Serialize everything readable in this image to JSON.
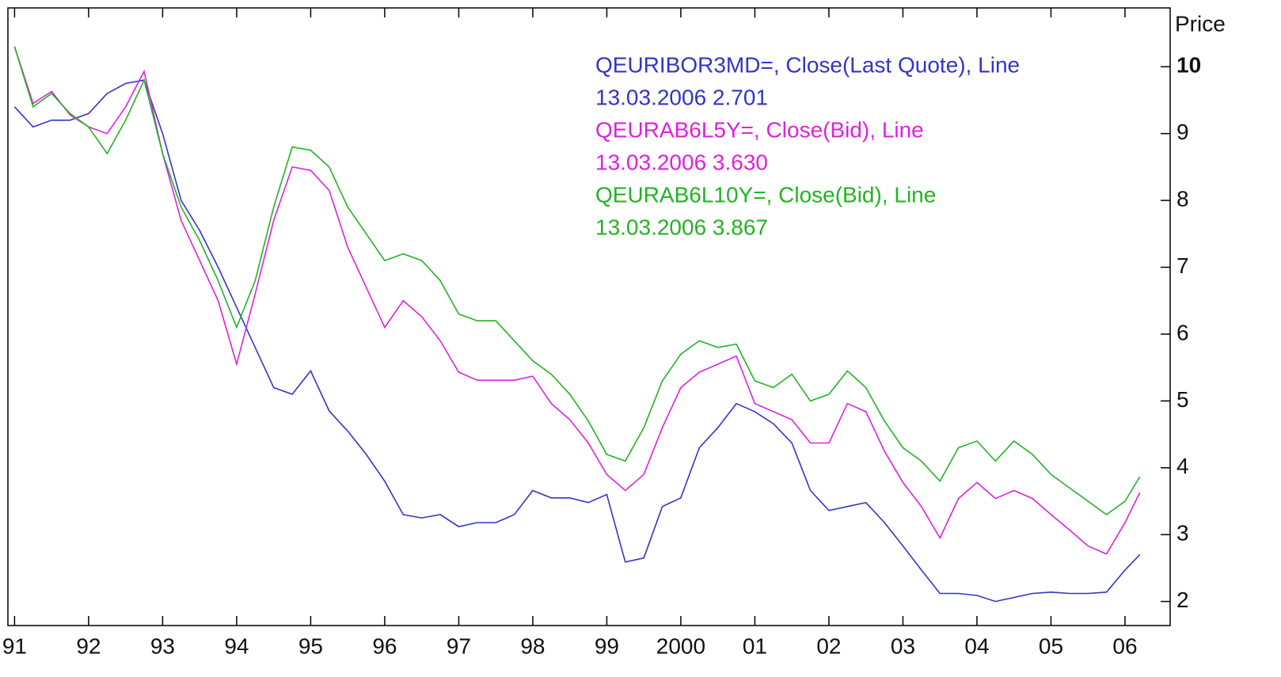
{
  "chart_data": {
    "type": "line",
    "y_label": "Price",
    "x": [
      1991,
      1991.25,
      1991.5,
      1991.75,
      1992,
      1992.25,
      1992.5,
      1992.75,
      1993,
      1993.25,
      1993.5,
      1993.75,
      1994,
      1994.25,
      1994.5,
      1994.75,
      1995,
      1995.25,
      1995.5,
      1995.75,
      1996,
      1996.25,
      1996.5,
      1996.75,
      1997,
      1997.25,
      1997.5,
      1997.75,
      1998,
      1998.25,
      1998.5,
      1998.75,
      1999,
      1999.25,
      1999.5,
      1999.75,
      2000,
      2000.25,
      2000.5,
      2000.75,
      2001,
      2001.25,
      2001.5,
      2001.75,
      2002,
      2002.25,
      2002.5,
      2002.75,
      2003,
      2003.25,
      2003.5,
      2003.75,
      2004,
      2004.25,
      2004.5,
      2004.75,
      2005,
      2005.25,
      2005.5,
      2005.75,
      2006,
      2006.2
    ],
    "series": [
      {
        "name": "QEURIBOR3MD=, Close(Last Quote), Line",
        "last_value_label": "13.03.2006 2.701",
        "color": "#3434c8",
        "values": [
          9.4,
          9.1,
          9.2,
          9.2,
          9.3,
          9.6,
          9.75,
          9.8,
          9.0,
          8.0,
          7.55,
          7.0,
          6.4,
          5.8,
          5.2,
          5.1,
          5.45,
          4.85,
          4.55,
          4.2,
          3.8,
          3.3,
          3.25,
          3.3,
          3.12,
          3.18,
          3.18,
          3.3,
          3.66,
          3.55,
          3.55,
          3.48,
          3.6,
          2.59,
          2.65,
          3.42,
          3.55,
          4.3,
          4.6,
          4.96,
          4.84,
          4.66,
          4.37,
          3.66,
          3.36,
          3.42,
          3.48,
          3.18,
          2.83,
          2.47,
          2.12,
          2.12,
          2.09,
          2.0,
          2.06,
          2.12,
          2.14,
          2.12,
          2.12,
          2.14,
          2.47,
          2.701
        ]
      },
      {
        "name": "QEURAB6L5Y=, Close(Bid), Line",
        "last_value_label": "13.03.2006 3.630",
        "color": "#e020e0",
        "values": [
          10.3,
          9.45,
          9.63,
          9.28,
          9.1,
          9.0,
          9.4,
          9.93,
          8.7,
          7.7,
          7.1,
          6.5,
          5.55,
          6.6,
          7.7,
          8.5,
          8.45,
          8.15,
          7.3,
          6.7,
          6.1,
          6.5,
          6.26,
          5.9,
          5.43,
          5.31,
          5.31,
          5.31,
          5.37,
          4.96,
          4.72,
          4.37,
          3.9,
          3.66,
          3.9,
          4.6,
          5.2,
          5.43,
          5.55,
          5.67,
          4.96,
          4.84,
          4.72,
          4.37,
          4.37,
          4.96,
          4.84,
          4.25,
          3.78,
          3.42,
          2.95,
          3.54,
          3.78,
          3.54,
          3.66,
          3.54,
          3.3,
          3.07,
          2.83,
          2.71,
          3.18,
          3.63
        ]
      },
      {
        "name": "QEURAB6L10Y=, Close(Bid), Line",
        "last_value_label": "13.03.2006 3.867",
        "color": "#22b422",
        "values": [
          10.3,
          9.4,
          9.6,
          9.3,
          9.1,
          8.7,
          9.2,
          9.8,
          8.7,
          7.9,
          7.4,
          6.8,
          6.1,
          6.8,
          7.9,
          8.8,
          8.75,
          8.5,
          7.9,
          7.5,
          7.1,
          7.2,
          7.1,
          6.8,
          6.3,
          6.2,
          6.2,
          5.9,
          5.6,
          5.4,
          5.1,
          4.7,
          4.2,
          4.1,
          4.6,
          5.3,
          5.7,
          5.9,
          5.8,
          5.85,
          5.3,
          5.2,
          5.4,
          5.0,
          5.1,
          5.45,
          5.2,
          4.7,
          4.3,
          4.1,
          3.8,
          4.3,
          4.4,
          4.1,
          4.4,
          4.2,
          3.9,
          3.7,
          3.5,
          3.3,
          3.5,
          3.867
        ]
      }
    ],
    "xlim": [
      1990.91,
      2006.61
    ],
    "ylim": [
      1.64,
      10.88
    ],
    "xticks": [
      {
        "value": 1991,
        "label": "91"
      },
      {
        "value": 1992,
        "label": "92"
      },
      {
        "value": 1993,
        "label": "93"
      },
      {
        "value": 1994,
        "label": "94"
      },
      {
        "value": 1995,
        "label": "95"
      },
      {
        "value": 1996,
        "label": "96"
      },
      {
        "value": 1997,
        "label": "97"
      },
      {
        "value": 1998,
        "label": "98"
      },
      {
        "value": 1999,
        "label": "99"
      },
      2000,
      {
        "value": 2001,
        "label": "01"
      },
      {
        "value": 2002,
        "label": "02"
      },
      {
        "value": 2003,
        "label": "03"
      },
      {
        "value": 2004,
        "label": "04"
      },
      {
        "value": 2005,
        "label": "05"
      },
      {
        "value": 2006,
        "label": "06"
      }
    ],
    "yticks": [
      2,
      3,
      4,
      5,
      6,
      7,
      8,
      9,
      10
    ]
  }
}
